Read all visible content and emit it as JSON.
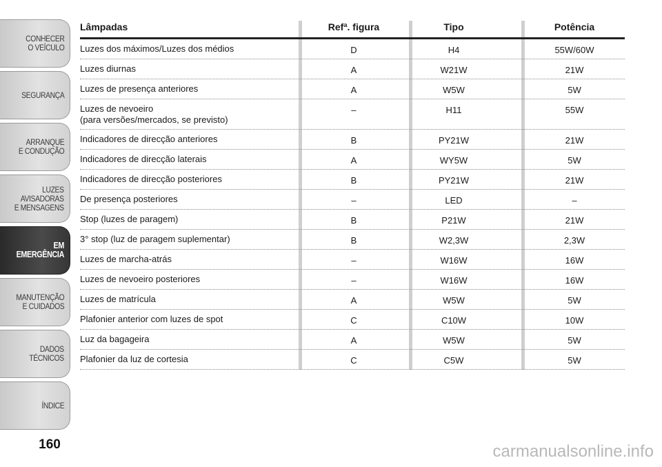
{
  "sidebar": {
    "tabs": [
      {
        "label": "CONHECER\nO VEÍCULO",
        "active": false
      },
      {
        "label": "SEGURANÇA",
        "active": false
      },
      {
        "label": "ARRANQUE\nE CONDUÇÃO",
        "active": false
      },
      {
        "label": "LUZES\nAVISADORAS\nE MENSAGENS",
        "active": false
      },
      {
        "label": "EM EMERGÊNCIA",
        "active": true
      },
      {
        "label": "MANUTENÇÃO\nE CUIDADOS",
        "active": false
      },
      {
        "label": "DADOS\nTÉCNICOS",
        "active": false
      },
      {
        "label": "ÍNDICE",
        "active": false
      }
    ]
  },
  "page_number": "160",
  "table": {
    "headers": {
      "lamp": "Lâmpadas",
      "ref": "Refª. figura",
      "type": "Tipo",
      "power": "Potência"
    },
    "rows": [
      {
        "lamp": "Luzes dos máximos/Luzes dos médios",
        "ref": "D",
        "type": "H4",
        "power": "55W/60W"
      },
      {
        "lamp": "Luzes diurnas",
        "ref": "A",
        "type": "W21W",
        "power": "21W"
      },
      {
        "lamp": "Luzes de presença anteriores",
        "ref": "A",
        "type": "W5W",
        "power": "5W"
      },
      {
        "lamp": "Luzes de nevoeiro\n(para versões/mercados, se previsto)",
        "ref": "–",
        "type": "H11",
        "power": "55W",
        "tall": true
      },
      {
        "lamp": "Indicadores de direcção anteriores",
        "ref": "B",
        "type": "PY21W",
        "power": "21W"
      },
      {
        "lamp": "Indicadores de direcção laterais",
        "ref": "A",
        "type": "WY5W",
        "power": "5W"
      },
      {
        "lamp": "Indicadores de direcção posteriores",
        "ref": "B",
        "type": "PY21W",
        "power": "21W"
      },
      {
        "lamp": "De presença posteriores",
        "ref": "–",
        "type": "LED",
        "power": "–"
      },
      {
        "lamp": "Stop (luzes de paragem)",
        "ref": "B",
        "type": "P21W",
        "power": "21W"
      },
      {
        "lamp": "3° stop (luz de paragem suplementar)",
        "ref": "B",
        "type": "W2,3W",
        "power": "2,3W"
      },
      {
        "lamp": "Luzes de marcha-atrás",
        "ref": "–",
        "type": "W16W",
        "power": "16W"
      },
      {
        "lamp": "Luzes de nevoeiro posteriores",
        "ref": "–",
        "type": "W16W",
        "power": "16W"
      },
      {
        "lamp": "Luzes de matrícula",
        "ref": "A",
        "type": "W5W",
        "power": "5W"
      },
      {
        "lamp": "Plafonier anterior com luzes de spot",
        "ref": "C",
        "type": "C10W",
        "power": "10W"
      },
      {
        "lamp": "Luz da bagageira",
        "ref": "A",
        "type": "W5W",
        "power": "5W"
      },
      {
        "lamp": "Plafonier da luz de cortesia",
        "ref": "C",
        "type": "C5W",
        "power": "5W"
      }
    ]
  },
  "watermark": "carmanualsonline.info"
}
